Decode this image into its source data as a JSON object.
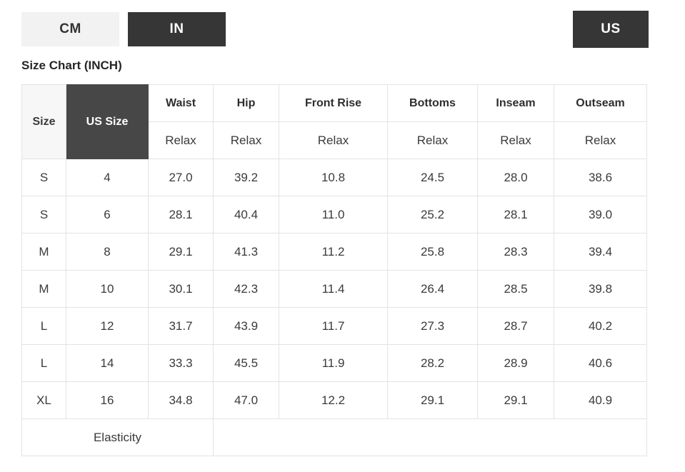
{
  "unit_toggle": {
    "cm_label": "CM",
    "in_label": "IN",
    "active_unit": "IN"
  },
  "region_selector": {
    "us_label": "US"
  },
  "title": "Size Chart (INCH)",
  "table": {
    "size_header": "Size",
    "us_size_header": "US Size",
    "measure_columns": [
      {
        "label": "Waist",
        "fit": "Relax"
      },
      {
        "label": "Hip",
        "fit": "Relax"
      },
      {
        "label": "Front Rise",
        "fit": "Relax"
      },
      {
        "label": "Bottoms",
        "fit": "Relax"
      },
      {
        "label": "Inseam",
        "fit": "Relax"
      },
      {
        "label": "Outseam",
        "fit": "Relax"
      }
    ],
    "rows": [
      {
        "size": "S",
        "us_size": "4",
        "values": [
          "27.0",
          "39.2",
          "10.8",
          "24.5",
          "28.0",
          "38.6"
        ]
      },
      {
        "size": "S",
        "us_size": "6",
        "values": [
          "28.1",
          "40.4",
          "11.0",
          "25.2",
          "28.1",
          "39.0"
        ]
      },
      {
        "size": "M",
        "us_size": "8",
        "values": [
          "29.1",
          "41.3",
          "11.2",
          "25.8",
          "28.3",
          "39.4"
        ]
      },
      {
        "size": "M",
        "us_size": "10",
        "values": [
          "30.1",
          "42.3",
          "11.4",
          "26.4",
          "28.5",
          "39.8"
        ]
      },
      {
        "size": "L",
        "us_size": "12",
        "values": [
          "31.7",
          "43.9",
          "11.7",
          "27.3",
          "28.7",
          "40.2"
        ]
      },
      {
        "size": "L",
        "us_size": "14",
        "values": [
          "33.3",
          "45.5",
          "11.9",
          "28.2",
          "28.9",
          "40.6"
        ]
      },
      {
        "size": "XL",
        "us_size": "16",
        "values": [
          "34.8",
          "47.0",
          "12.2",
          "29.1",
          "29.1",
          "40.9"
        ]
      }
    ],
    "footer_label": "Elasticity"
  },
  "colors": {
    "dark_button_bg": "#363636",
    "dark_cell_bg": "#474747",
    "light_button_bg": "#f2f2f2",
    "border_color": "#e3e3e3",
    "text_color": "#3a3a3a"
  }
}
